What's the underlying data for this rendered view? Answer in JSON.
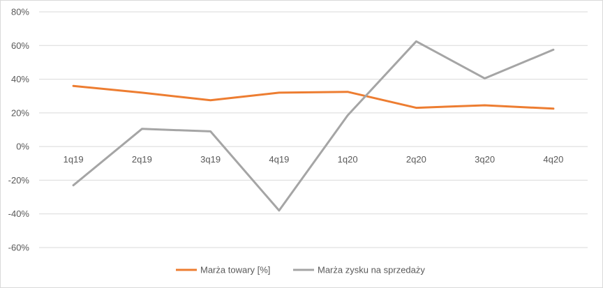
{
  "chart_data": {
    "type": "line",
    "categories": [
      "1q19",
      "2q19",
      "3q19",
      "4q19",
      "1q20",
      "2q20",
      "3q20",
      "4q20"
    ],
    "series": [
      {
        "name": "Marża towary [%]",
        "color": "#ED7D31",
        "values": [
          36,
          32,
          27.5,
          32,
          32.5,
          23,
          24.5,
          22.5
        ]
      },
      {
        "name": "Marża zysku na sprzedaży",
        "color": "#A5A5A5",
        "values": [
          -23,
          10.5,
          9,
          -38,
          18.5,
          62.5,
          40.5,
          57.5
        ]
      }
    ],
    "ylim": [
      -60,
      80
    ],
    "yticks": [
      80,
      60,
      40,
      20,
      0,
      -20,
      -40,
      -60
    ],
    "ytick_labels": [
      "80%",
      "60%",
      "40%",
      "20%",
      "0%",
      "-20%",
      "-40%",
      "-60%"
    ],
    "grid": true,
    "legend": "bottom",
    "title": "",
    "xlabel": "",
    "ylabel": ""
  }
}
